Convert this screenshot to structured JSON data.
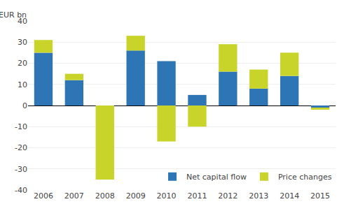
{
  "chart_data": {
    "type": "bar",
    "stacked": true,
    "ylabel": "EUR bn",
    "categories": [
      "2006",
      "2007",
      "2008",
      "2009",
      "2010",
      "2011",
      "2012",
      "2013",
      "2014",
      "2015"
    ],
    "series": [
      {
        "name": "Net capital flow",
        "color": "#2E75B6",
        "values": [
          25,
          12,
          0,
          26,
          21,
          5,
          16,
          8,
          14,
          -1
        ]
      },
      {
        "name": "Price changes",
        "color": "#C9D42A",
        "values": [
          6,
          3,
          -35,
          7,
          -17,
          -10,
          13,
          9,
          11,
          -1
        ]
      }
    ],
    "ylim": [
      -40,
      40
    ],
    "yticks": [
      -40,
      -30,
      -20,
      -10,
      0,
      10,
      20,
      30,
      40
    ],
    "grid": true,
    "legend": "lower right"
  }
}
